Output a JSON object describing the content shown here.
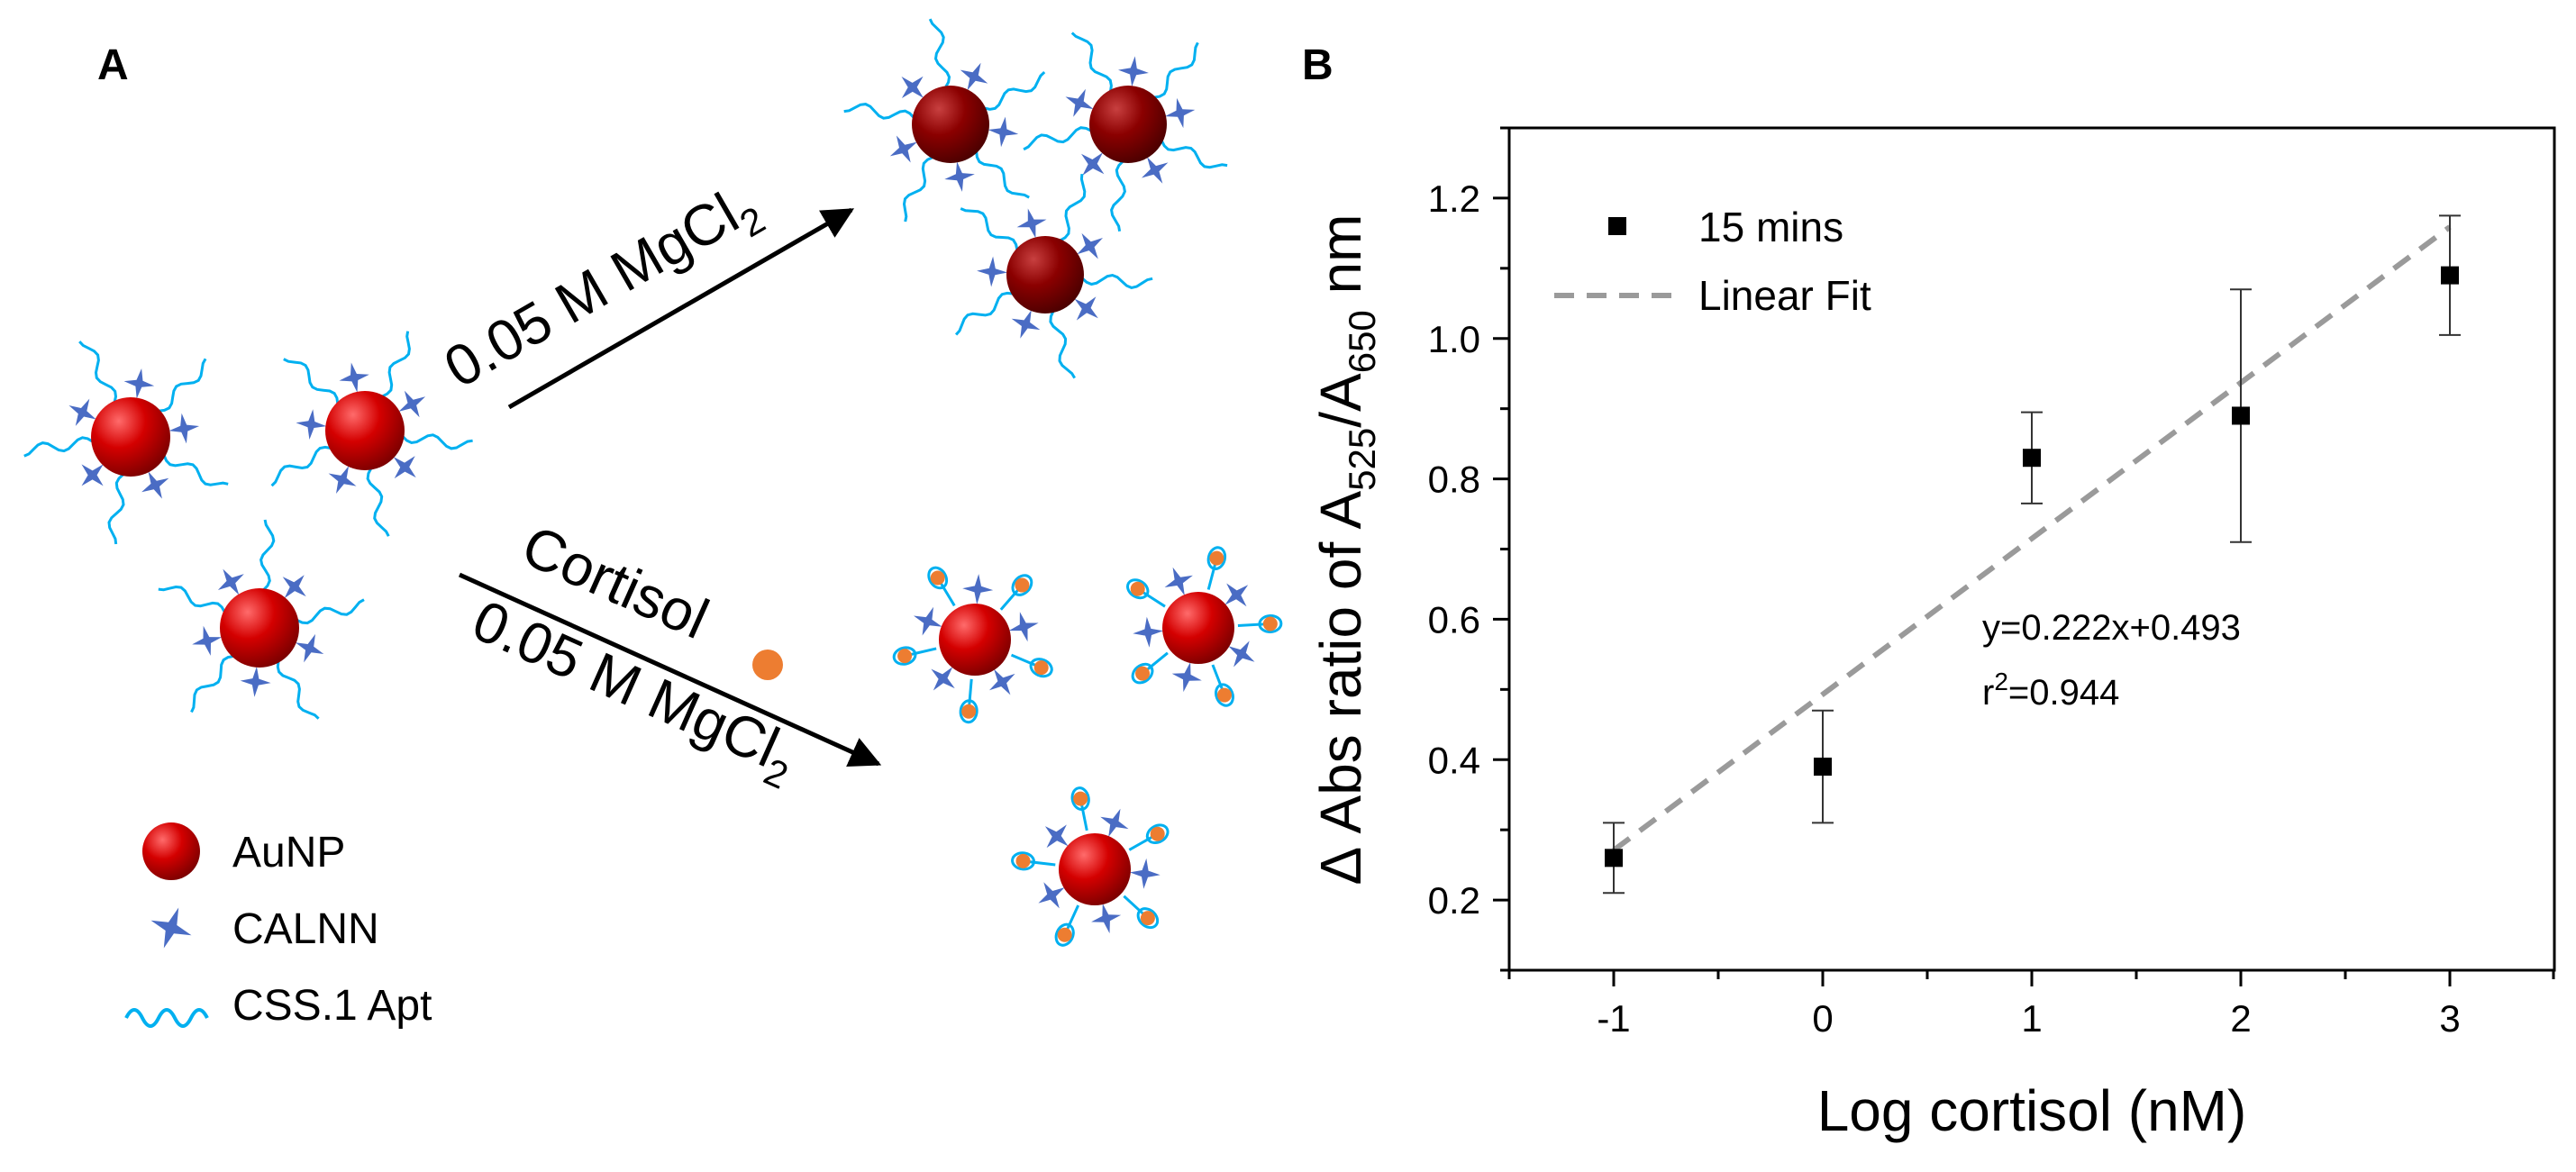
{
  "panel_a": {
    "label": "A",
    "top_arrow": {
      "text": "0.05 M MgCl",
      "sub": "2"
    },
    "bottom_arrow": {
      "line1": "Cortisol",
      "line2": "0.05 M MgCl",
      "sub": "2"
    },
    "legend": {
      "aunp": "AuNP",
      "calnn": "CALNN",
      "apt": "CSS.1 Apt"
    }
  },
  "panel_b": {
    "label": "B",
    "y_title": {
      "pre": "Δ Abs ratio of A",
      "s1": "525",
      "mid": "/A",
      "s2": "650",
      "post": " nm"
    },
    "x_title": "Log cortisol (nM)",
    "legend_points": "15 mins",
    "legend_fit": "Linear Fit",
    "equation": "y=0.222x+0.493",
    "r2_pre": "r",
    "r2_sup": "2",
    "r2_post": "=0.944"
  },
  "colors": {
    "aunp": "#c00000",
    "aunp_agg": "#8b0000",
    "calnn": "#4a6cc4",
    "apt": "#00b0f0",
    "cortisol": "#ed7d31",
    "fit": "#9a9a9a"
  },
  "chart_data": {
    "type": "scatter",
    "title": "",
    "xlabel": "Log cortisol (nM)",
    "ylabel": "Δ Abs ratio of A525/A650 nm",
    "xlim": [
      -1.5,
      3.5
    ],
    "ylim": [
      0.1,
      1.3
    ],
    "xticks": [
      -1,
      0,
      1,
      2,
      3
    ],
    "yticks": [
      0.2,
      0.4,
      0.6,
      0.8,
      1.0,
      1.2
    ],
    "series": [
      {
        "name": "15 mins",
        "x": [
          -1,
          0,
          1,
          2,
          3
        ],
        "y": [
          0.26,
          0.39,
          0.83,
          0.89,
          1.09
        ],
        "yerr": [
          0.05,
          0.08,
          0.065,
          0.18,
          0.085
        ]
      }
    ],
    "fit": {
      "name": "Linear Fit",
      "slope": 0.222,
      "intercept": 0.493,
      "x_range": [
        -1,
        3
      ]
    },
    "legend_position": "top-left"
  }
}
